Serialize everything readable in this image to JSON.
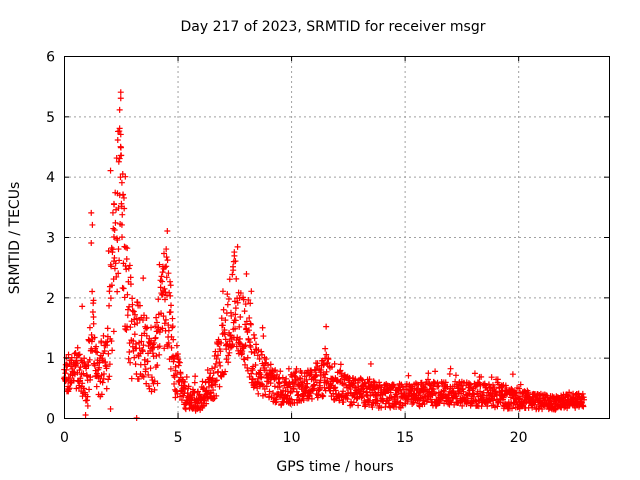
{
  "chart_data": {
    "type": "scatter",
    "title": "Day 217 of 2023, SRMTID for receiver msgr",
    "xlabel": "GPS time / hours",
    "ylabel": "SRMTID / TECUs",
    "xlim": [
      0,
      24
    ],
    "ylim": [
      0,
      6
    ],
    "x_ticks": [
      "0",
      "5",
      "10",
      "15",
      "20"
    ],
    "y_ticks": [
      "0",
      "1",
      "2",
      "3",
      "4",
      "5",
      "6"
    ],
    "grid": true,
    "marker": "+",
    "color": "#ff0000",
    "series": [
      {
        "name": "SRMTID",
        "profile": [
          [
            0.0,
            0.65,
            0.25
          ],
          [
            0.5,
            0.8,
            0.3
          ],
          [
            1.0,
            0.6,
            0.4
          ],
          [
            1.2,
            1.5,
            0.8
          ],
          [
            1.5,
            0.7,
            0.4
          ],
          [
            1.9,
            1.0,
            0.6
          ],
          [
            2.2,
            2.5,
            1.2
          ],
          [
            2.45,
            4.0,
            1.4
          ],
          [
            2.7,
            2.5,
            1.2
          ],
          [
            3.0,
            1.3,
            0.8
          ],
          [
            3.5,
            1.2,
            0.7
          ],
          [
            4.0,
            0.9,
            0.6
          ],
          [
            4.5,
            2.2,
            0.9
          ],
          [
            4.9,
            0.8,
            0.5
          ],
          [
            5.3,
            0.35,
            0.2
          ],
          [
            6.0,
            0.3,
            0.2
          ],
          [
            6.5,
            0.5,
            0.3
          ],
          [
            7.0,
            1.2,
            0.6
          ],
          [
            7.5,
            2.0,
            0.7
          ],
          [
            8.0,
            1.3,
            0.6
          ],
          [
            8.5,
            0.8,
            0.4
          ],
          [
            9.5,
            0.45,
            0.25
          ],
          [
            11.0,
            0.6,
            0.3
          ],
          [
            11.5,
            0.7,
            0.35
          ],
          [
            12.5,
            0.45,
            0.25
          ],
          [
            14.5,
            0.35,
            0.2
          ],
          [
            16.0,
            0.4,
            0.2
          ],
          [
            18.0,
            0.4,
            0.2
          ],
          [
            19.5,
            0.35,
            0.2
          ],
          [
            20.5,
            0.3,
            0.15
          ],
          [
            21.5,
            0.25,
            0.12
          ],
          [
            22.9,
            0.3,
            0.12
          ]
        ],
        "peaks": [
          [
            2.5,
            5.4
          ],
          [
            2.5,
            5.3
          ],
          [
            2.45,
            4.8
          ],
          [
            2.5,
            4.7
          ],
          [
            2.45,
            4.3
          ],
          [
            2.5,
            4.35
          ],
          [
            2.05,
            4.1
          ],
          [
            2.55,
            3.9
          ],
          [
            2.7,
            4.0
          ],
          [
            2.6,
            3.7
          ],
          [
            2.2,
            3.55
          ],
          [
            2.55,
            3.2
          ],
          [
            2.2,
            3.0
          ],
          [
            2.35,
            2.95
          ],
          [
            2.4,
            2.8
          ],
          [
            2.2,
            2.6
          ],
          [
            1.2,
            3.4
          ],
          [
            1.25,
            3.2
          ],
          [
            1.2,
            2.9
          ],
          [
            0.8,
            1.85
          ],
          [
            1.3,
            1.95
          ],
          [
            4.55,
            3.1
          ],
          [
            4.5,
            2.8
          ],
          [
            4.45,
            2.5
          ],
          [
            4.6,
            2.4
          ],
          [
            4.7,
            2.2
          ],
          [
            4.35,
            2.05
          ],
          [
            7.5,
            2.75
          ],
          [
            7.55,
            2.6
          ],
          [
            7.45,
            2.45
          ],
          [
            7.3,
            2.3
          ],
          [
            7.0,
            2.1
          ],
          [
            8.25,
            2.1
          ],
          [
            8.2,
            1.9
          ],
          [
            11.5,
            1.15
          ],
          [
            11.55,
            1.05
          ],
          [
            3.2,
            0.0
          ],
          [
            0.95,
            0.05
          ],
          [
            1.05,
            0.2
          ],
          [
            2.05,
            0.15
          ],
          [
            0.1,
            1.0
          ],
          [
            0.2,
            1.05
          ]
        ]
      }
    ]
  }
}
